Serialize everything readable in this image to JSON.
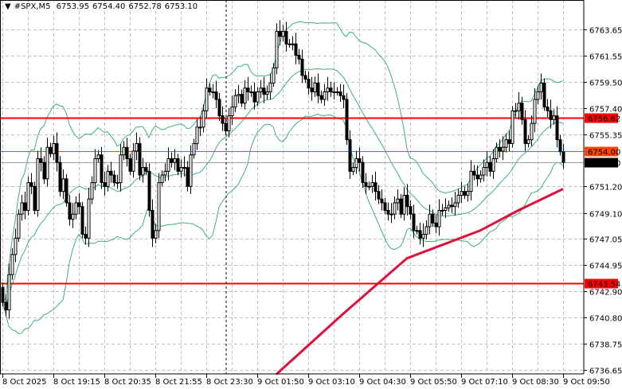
{
  "header": {
    "symbol": "#SPX,M5",
    "open": "6753.95",
    "high": "6754.40",
    "low": "6752.78",
    "close": "6753.10"
  },
  "chart_data": {
    "type": "candlestick",
    "title": "#SPX,M5",
    "timeframe": "M5",
    "x_tick_labels": [
      "8 Oct 2025",
      "8 Oct 19:15",
      "8 Oct 20:35",
      "8 Oct 21:55",
      "8 Oct 23:30",
      "9 Oct 01:50",
      "9 Oct 03:10",
      "9 Oct 04:30",
      "9 Oct 05:50",
      "9 Oct 07:10",
      "9 Oct 08:30",
      "9 Oct 09:50"
    ],
    "y_tick_labels": [
      "6763.65",
      "6761.55",
      "6759.50",
      "6757.40",
      "6755.35",
      "6751.20",
      "6749.10",
      "6747.05",
      "6744.95",
      "6742.90",
      "6740.80",
      "6738.75",
      "6736.65"
    ],
    "ylim": [
      6736.3,
      6765.9
    ],
    "grid": true,
    "closes": [
      6742.0,
      6741.4,
      6744.2,
      6745.8,
      6747.1,
      6749.0,
      6749.9,
      6749.3,
      6751.5,
      6751.2,
      6749.3,
      6753.4,
      6753.1,
      6751.8,
      6754.3,
      6753.8,
      6754.6,
      6753.1,
      6750.8,
      6751.8,
      6749.9,
      6748.6,
      6749.0,
      6749.9,
      6749.6,
      6747.4,
      6747.1,
      6750.2,
      6751.5,
      6753.4,
      6753.7,
      6751.5,
      6751.2,
      6752.4,
      6752.1,
      6751.5,
      6751.5,
      6753.7,
      6754.3,
      6753.4,
      6752.4,
      6754.0,
      6754.6,
      6752.1,
      6752.7,
      6752.4,
      6749.3,
      6747.1,
      6747.7,
      6751.5,
      6752.1,
      6752.4,
      6753.4,
      6753.1,
      6753.4,
      6752.4,
      6752.7,
      6752.7,
      6751.2,
      6753.7,
      6754.6,
      6755.9,
      6755.9,
      6757.2,
      6759.0,
      6758.7,
      6758.7,
      6758.1,
      6756.8,
      6756.2,
      6755.6,
      6756.8,
      6757.5,
      6758.4,
      6758.5,
      6757.8,
      6759.0,
      6758.7,
      6758.7,
      6757.9,
      6758.7,
      6759.0,
      6758.5,
      6758.7,
      6759.4,
      6760.6,
      6763.5,
      6763.1,
      6763.5,
      6762.5,
      6762.5,
      6762.5,
      6761.6,
      6761.3,
      6760.0,
      6759.7,
      6759.0,
      6758.7,
      6759.4,
      6758.4,
      6758.1,
      6758.7,
      6759.0,
      6758.7,
      6758.7,
      6758.7,
      6758.4,
      6758.1,
      6754.9,
      6752.4,
      6752.7,
      6753.4,
      6753.1,
      6751.5,
      6751.2,
      6751.2,
      6751.5,
      6750.8,
      6750.2,
      6749.9,
      6749.3,
      6749.0,
      6749.0,
      6749.9,
      6750.2,
      6749.0,
      6750.5,
      6749.6,
      6749.0,
      6747.7,
      6747.7,
      6747.1,
      6747.4,
      6748.0,
      6749.0,
      6748.3,
      6748.0,
      6749.3,
      6749.3,
      6749.5,
      6749.7,
      6749.6,
      6749.9,
      6750.5,
      6750.8,
      6750.5,
      6750.8,
      6752.4,
      6752.1,
      6751.8,
      6752.1,
      6752.7,
      6753.1,
      6752.4,
      6753.4,
      6754.3,
      6754.0,
      6754.3,
      6754.9,
      6754.6,
      6757.2,
      6757.2,
      6757.8,
      6756.5,
      6754.6,
      6754.9,
      6756.2,
      6758.1,
      6758.7,
      6759.4,
      6757.5,
      6757.2,
      6756.5,
      6756.8,
      6754.9,
      6753.95,
      6753.1
    ],
    "first_open": 6743.2,
    "moving_average": {
      "color": "#e0103c",
      "points": [
        [
          86,
          6736.3
        ],
        [
          107,
          6741.1
        ],
        [
          127,
          6745.5
        ],
        [
          150,
          6747.7
        ],
        [
          162,
          6749.3
        ],
        [
          176,
          6751.0
        ]
      ]
    },
    "bollinger": {
      "period": 20,
      "deviations": 2,
      "color": "#3cb371"
    },
    "levels": [
      {
        "value": 6756.62,
        "label": "6756.62",
        "color": "#ff0000",
        "style": "thick"
      },
      {
        "value": 6754.0,
        "label": "6754.00",
        "color": "#ff4500",
        "style": "thin"
      },
      {
        "value": 6753.1,
        "label": "6753.10",
        "color": "#000000",
        "style": "bid"
      },
      {
        "value": 6743.54,
        "label": "6743.54",
        "color": "#ff0000",
        "style": "thick"
      }
    ]
  }
}
